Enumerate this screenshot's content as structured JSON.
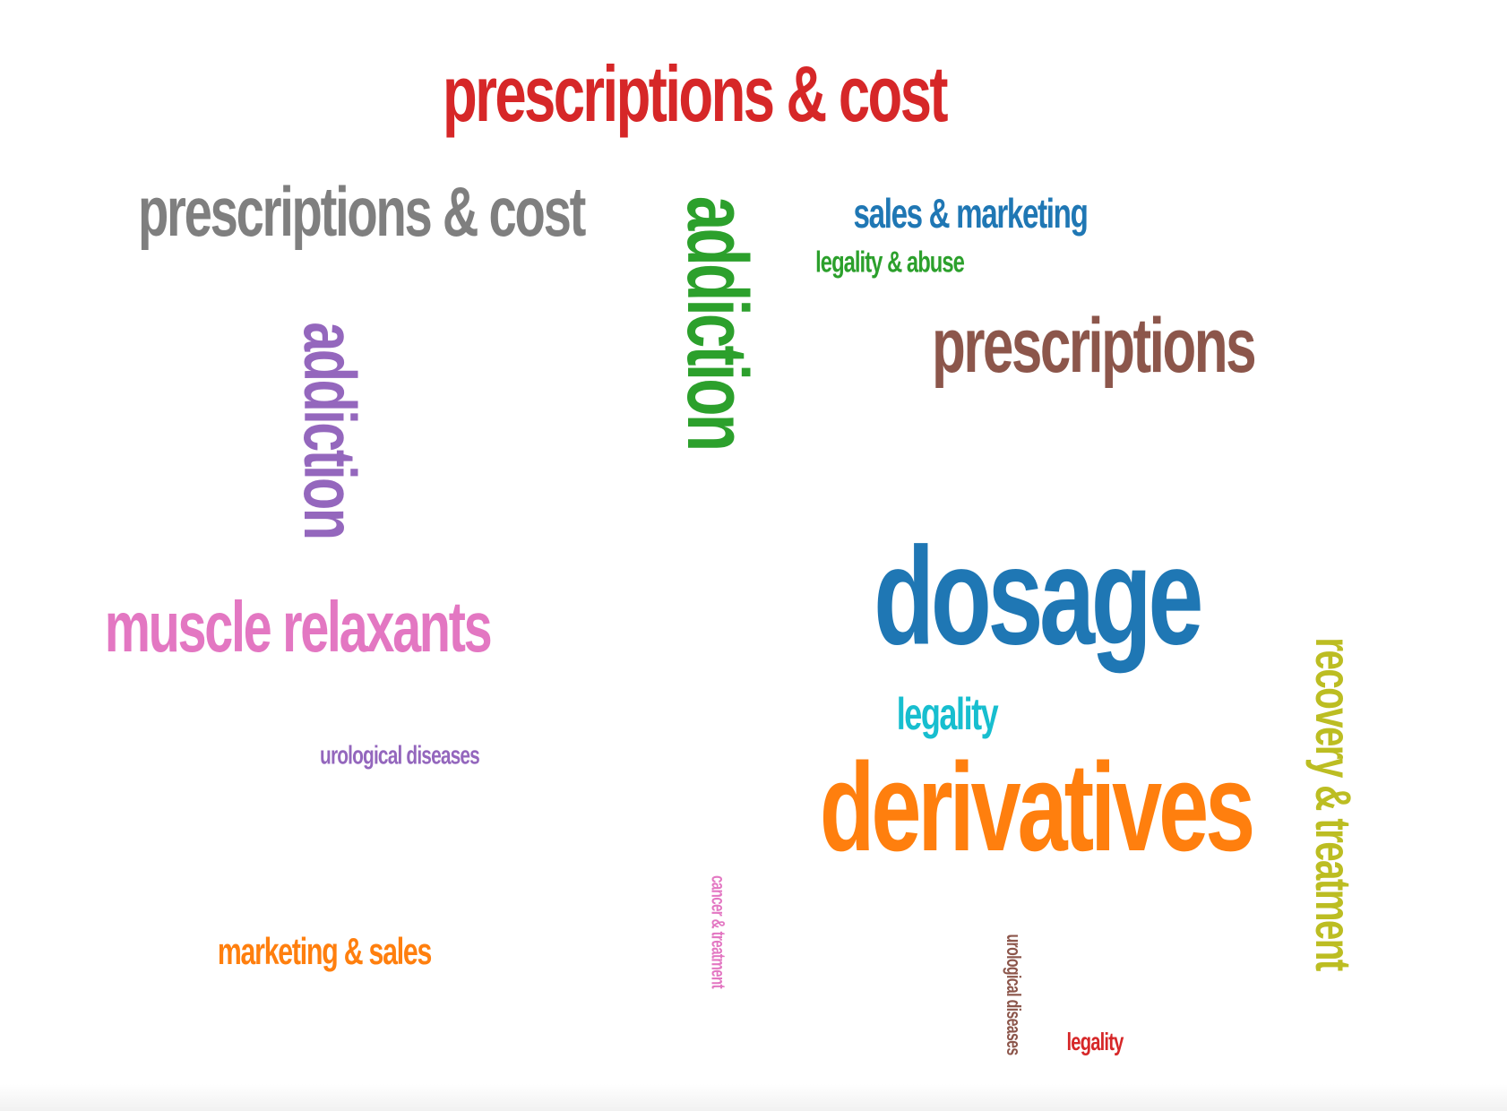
{
  "words": [
    {
      "text": "prescriptions & cost",
      "color": "#d62728",
      "orientation": "horizontal"
    },
    {
      "text": "prescriptions & cost",
      "color": "#7f7f7f",
      "orientation": "horizontal"
    },
    {
      "text": "addiction",
      "color": "#2ca02c",
      "orientation": "vertical"
    },
    {
      "text": "sales & marketing",
      "color": "#1f77b4",
      "orientation": "horizontal"
    },
    {
      "text": "legality & abuse",
      "color": "#2ca02c",
      "orientation": "horizontal"
    },
    {
      "text": "prescriptions",
      "color": "#8c564b",
      "orientation": "horizontal"
    },
    {
      "text": "addiction",
      "color": "#9467bd",
      "orientation": "vertical"
    },
    {
      "text": "muscle relaxants",
      "color": "#e377c2",
      "orientation": "horizontal"
    },
    {
      "text": "dosage",
      "color": "#1f77b4",
      "orientation": "horizontal"
    },
    {
      "text": "recovery & treatment",
      "color": "#bcbd22",
      "orientation": "vertical"
    },
    {
      "text": "legality",
      "color": "#17becf",
      "orientation": "horizontal"
    },
    {
      "text": "urological diseases",
      "color": "#9467bd",
      "orientation": "horizontal"
    },
    {
      "text": "derivatives",
      "color": "#ff7f0e",
      "orientation": "horizontal"
    },
    {
      "text": "cancer & treatment",
      "color": "#e377c2",
      "orientation": "vertical"
    },
    {
      "text": "marketing & sales",
      "color": "#ff7f0e",
      "orientation": "horizontal"
    },
    {
      "text": "urological diseases",
      "color": "#8c564b",
      "orientation": "vertical"
    },
    {
      "text": "legality",
      "color": "#d62728",
      "orientation": "horizontal"
    }
  ]
}
